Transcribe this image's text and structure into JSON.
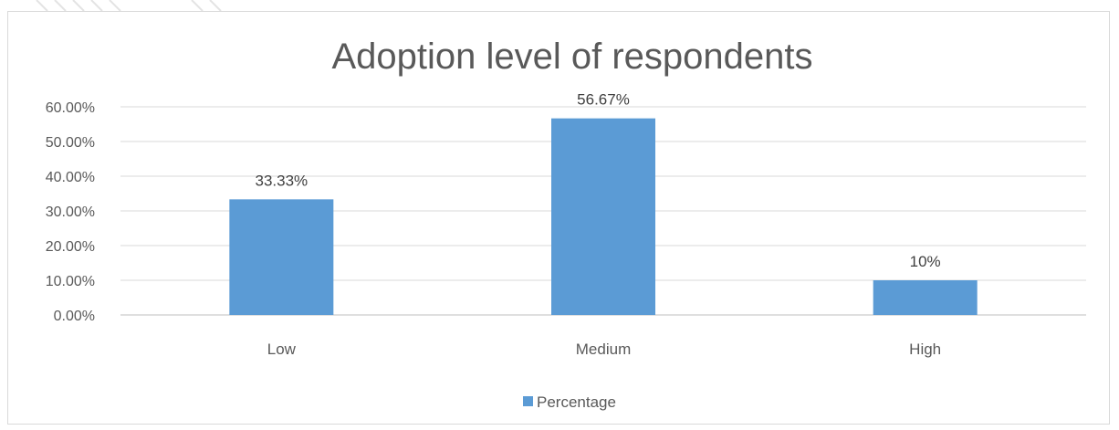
{
  "chart_data": {
    "type": "bar",
    "title": "Adoption level of respondents",
    "categories": [
      "Low",
      "Medium",
      "High"
    ],
    "series": [
      {
        "name": "Percentage",
        "values": [
          33.33,
          56.67,
          10
        ],
        "data_labels": [
          "33.33%",
          "56.67%",
          "10%"
        ],
        "color": "#5b9bd5"
      }
    ],
    "y_ticks": [
      "0.00%",
      "10.00%",
      "20.00%",
      "30.00%",
      "40.00%",
      "50.00%",
      "60.00%"
    ],
    "ylim": [
      0,
      60
    ],
    "grid": true,
    "legend_position": "bottom"
  }
}
